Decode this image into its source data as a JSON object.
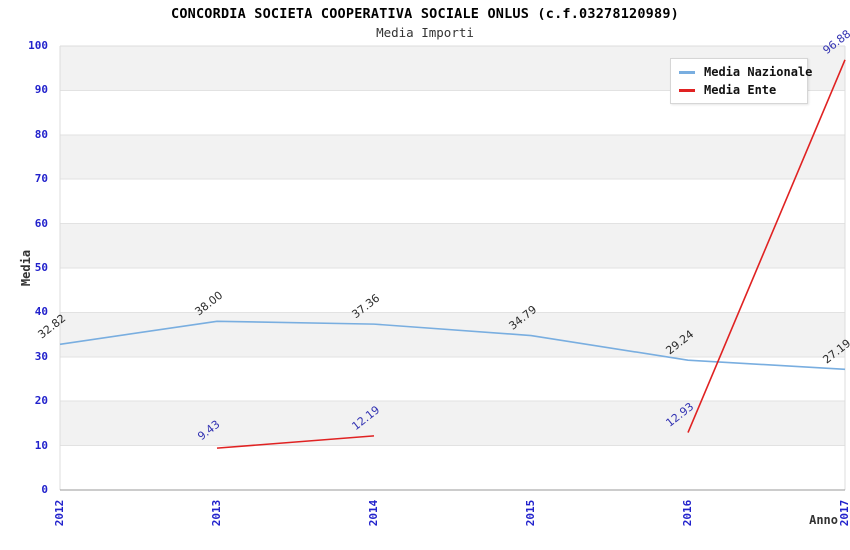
{
  "title": "CONCORDIA SOCIETA COOPERATIVA SOCIALE ONLUS (c.f.03278120989)",
  "subtitle": "Media Importi",
  "axes": {
    "y_title": "Media",
    "x_title": "Anno",
    "y_ticks": [
      "0",
      "10",
      "20",
      "30",
      "40",
      "50",
      "60",
      "70",
      "80",
      "90",
      "100"
    ]
  },
  "chart_data": {
    "type": "line",
    "title": "CONCORDIA SOCIETA COOPERATIVA SOCIALE ONLUS (c.f.03278120989)",
    "subtitle": "Media Importi",
    "xlabel": "Anno",
    "ylabel": "Media",
    "categories": [
      "2012",
      "2013",
      "2014",
      "2015",
      "2016",
      "2017"
    ],
    "series": [
      {
        "name": "Media Nazionale",
        "color": "#79AEE0",
        "label_color": "#2B2B2B",
        "values": [
          32.82,
          38.0,
          37.36,
          34.79,
          29.24,
          27.19
        ],
        "labels": [
          "32.82",
          "38.00",
          "37.36",
          "34.79",
          "29.24",
          "27.19"
        ]
      },
      {
        "name": "Media Ente",
        "color": "#E02222",
        "label_color": "#3232B2",
        "values": [
          null,
          9.43,
          12.19,
          null,
          12.93,
          96.88
        ],
        "labels": [
          null,
          "9.43",
          "12.19",
          null,
          "12.93",
          "96.88"
        ]
      }
    ],
    "ylim": [
      0,
      100
    ],
    "y_tick_step": 10,
    "grid": "horizontal bands, alternating gray/white",
    "legend_position": "top-right"
  },
  "colors": {
    "band_gray": "#F2F2F2",
    "band_white": "#FFFFFF",
    "grid_line": "#E2E2E2",
    "plot_border": "#DCDCDC",
    "bottom_axis": "#999999",
    "tick_label": "#2222CC",
    "title": "#000000",
    "axis_title": "#333333"
  }
}
